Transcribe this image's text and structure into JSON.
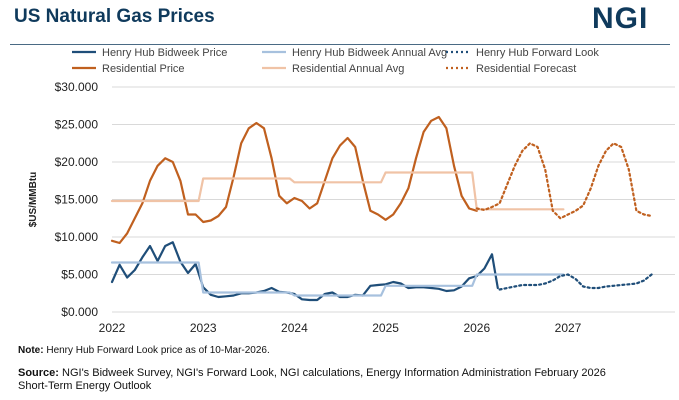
{
  "header": {
    "title": "US Natural Gas Prices",
    "logo": "NGI"
  },
  "colors": {
    "henry_hub": "#1f4e79",
    "henry_hub_avg": "#a7c1de",
    "residential": "#c0601f",
    "residential_avg": "#f0c3a6",
    "grid": "#d9d9d9",
    "brand": "#0f3a5c"
  },
  "footer": {
    "note_label": "Note:",
    "note_text": " Henry Hub Forward Look price as of 10-Mar-2026.",
    "source_label": "Source:",
    "source_text": " NGI's Bidweek Survey, NGI's Forward Look, NGI calculations, Energy Information Administration February 2026 Short-Term Energy Outlook"
  },
  "chart_data": {
    "type": "line",
    "title": "US Natural Gas Prices",
    "xlabel": "",
    "ylabel": "$US/MMBtu",
    "xlim": [
      2022.0,
      2028.0
    ],
    "ylim": [
      0,
      30
    ],
    "y_ticks": [
      0,
      5,
      10,
      15,
      20,
      25,
      30
    ],
    "y_tick_labels": [
      "$0.000",
      "$5.000",
      "$10.000",
      "$15.000",
      "$20.000",
      "$25.000",
      "$30.000"
    ],
    "x_ticks": [
      2022,
      2023,
      2024,
      2025,
      2026,
      2027
    ],
    "x_tick_labels": [
      "2022",
      "2023",
      "2024",
      "2025",
      "2026",
      "2027"
    ],
    "grid": "horizontal",
    "legend_position": "top",
    "series": [
      {
        "name": "Henry Hub Bidweek Price",
        "color": "#1f4e79",
        "dash": "solid",
        "width": 2.2,
        "x": [
          2022.0,
          2022.083,
          2022.167,
          2022.25,
          2022.333,
          2022.417,
          2022.5,
          2022.583,
          2022.667,
          2022.75,
          2022.833,
          2022.917,
          2023.0,
          2023.083,
          2023.167,
          2023.25,
          2023.333,
          2023.417,
          2023.5,
          2023.583,
          2023.667,
          2023.75,
          2023.833,
          2023.917,
          2024.0,
          2024.083,
          2024.167,
          2024.25,
          2024.333,
          2024.417,
          2024.5,
          2024.583,
          2024.667,
          2024.75,
          2024.833,
          2024.917,
          2025.0,
          2025.083,
          2025.167,
          2025.25,
          2025.333,
          2025.417,
          2025.5,
          2025.583,
          2025.667,
          2025.75,
          2025.833,
          2025.917,
          2026.0,
          2026.083,
          2026.167,
          2026.23
        ],
        "y": [
          4.0,
          6.3,
          4.6,
          5.6,
          7.3,
          8.8,
          6.8,
          8.8,
          9.3,
          6.7,
          5.2,
          6.4,
          3.3,
          2.3,
          2.0,
          2.1,
          2.2,
          2.5,
          2.5,
          2.6,
          2.8,
          3.2,
          2.7,
          2.6,
          2.4,
          1.7,
          1.6,
          1.6,
          2.4,
          2.6,
          2.0,
          2.0,
          2.3,
          2.2,
          3.5,
          3.6,
          3.7,
          4.0,
          3.8,
          3.2,
          3.3,
          3.3,
          3.2,
          3.1,
          2.8,
          2.9,
          3.4,
          4.5,
          4.8,
          5.8,
          7.7,
          3.2
        ]
      },
      {
        "name": "Henry Hub Bidweek Annual Avg",
        "color": "#a7c1de",
        "dash": "solid",
        "width": 2.2,
        "x": [
          2022.0,
          2022.95,
          2023.0,
          2023.95,
          2024.0,
          2024.95,
          2025.0,
          2025.95,
          2026.0,
          2026.95
        ],
        "y": [
          6.6,
          6.6,
          2.6,
          2.6,
          2.2,
          2.2,
          3.5,
          3.5,
          5.0,
          5.0
        ]
      },
      {
        "name": "Henry Hub Forward Look",
        "color": "#1f4e79",
        "dash": "dotted",
        "width": 2.2,
        "x": [
          2026.25,
          2026.333,
          2026.417,
          2026.5,
          2026.583,
          2026.667,
          2026.75,
          2026.833,
          2026.917,
          2027.0,
          2027.083,
          2027.167,
          2027.25,
          2027.333,
          2027.417,
          2027.5,
          2027.583,
          2027.667,
          2027.75,
          2027.833,
          2027.917
        ],
        "y": [
          3.0,
          3.2,
          3.4,
          3.6,
          3.6,
          3.6,
          3.8,
          4.2,
          4.8,
          5.0,
          4.4,
          3.4,
          3.2,
          3.2,
          3.4,
          3.5,
          3.6,
          3.7,
          3.8,
          4.2,
          5.0
        ]
      },
      {
        "name": "Residential Price",
        "color": "#c0601f",
        "dash": "solid",
        "width": 2.2,
        "x": [
          2022.0,
          2022.083,
          2022.167,
          2022.25,
          2022.333,
          2022.417,
          2022.5,
          2022.583,
          2022.667,
          2022.75,
          2022.833,
          2022.917,
          2023.0,
          2023.083,
          2023.167,
          2023.25,
          2023.333,
          2023.417,
          2023.5,
          2023.583,
          2023.667,
          2023.75,
          2023.833,
          2023.917,
          2024.0,
          2024.083,
          2024.167,
          2024.25,
          2024.333,
          2024.417,
          2024.5,
          2024.583,
          2024.667,
          2024.75,
          2024.833,
          2024.917,
          2025.0,
          2025.083,
          2025.167,
          2025.25,
          2025.333,
          2025.417,
          2025.5,
          2025.583,
          2025.667,
          2025.75,
          2025.833,
          2025.917,
          2026.0
        ],
        "y": [
          9.5,
          9.2,
          10.5,
          12.5,
          14.5,
          17.5,
          19.5,
          20.5,
          20.0,
          17.5,
          13.0,
          13.0,
          12.0,
          12.2,
          12.8,
          14.0,
          18.0,
          22.5,
          24.5,
          25.2,
          24.5,
          20.5,
          15.5,
          14.5,
          15.2,
          14.8,
          13.8,
          14.5,
          17.5,
          20.5,
          22.2,
          23.2,
          22.0,
          17.5,
          13.5,
          13.0,
          12.3,
          13.0,
          14.5,
          16.5,
          20.5,
          24.0,
          25.5,
          26.0,
          24.5,
          19.5,
          15.5,
          13.8,
          13.5
        ]
      },
      {
        "name": "Residential Annual Avg",
        "color": "#f0c3a6",
        "dash": "solid",
        "width": 2.2,
        "x": [
          2022.0,
          2022.95,
          2023.0,
          2023.95,
          2024.0,
          2024.95,
          2025.0,
          2025.95,
          2026.0,
          2026.95
        ],
        "y": [
          14.8,
          14.8,
          17.8,
          17.8,
          17.3,
          17.3,
          18.6,
          18.6,
          13.7,
          13.7
        ]
      },
      {
        "name": "Residential Forecast",
        "color": "#c0601f",
        "dash": "dotted",
        "width": 2.2,
        "x": [
          2026.0,
          2026.083,
          2026.167,
          2026.25,
          2026.333,
          2026.417,
          2026.5,
          2026.583,
          2026.667,
          2026.75,
          2026.833,
          2026.917,
          2027.0,
          2027.083,
          2027.167,
          2027.25,
          2027.333,
          2027.417,
          2027.5,
          2027.583,
          2027.667,
          2027.75,
          2027.833,
          2027.917
        ],
        "y": [
          13.8,
          13.6,
          14.0,
          14.5,
          17.0,
          19.5,
          21.5,
          22.5,
          22.0,
          19.0,
          13.5,
          12.5,
          13.0,
          13.5,
          14.2,
          16.5,
          19.5,
          21.5,
          22.5,
          22.0,
          19.0,
          13.5,
          13.0,
          12.8
        ]
      }
    ]
  }
}
